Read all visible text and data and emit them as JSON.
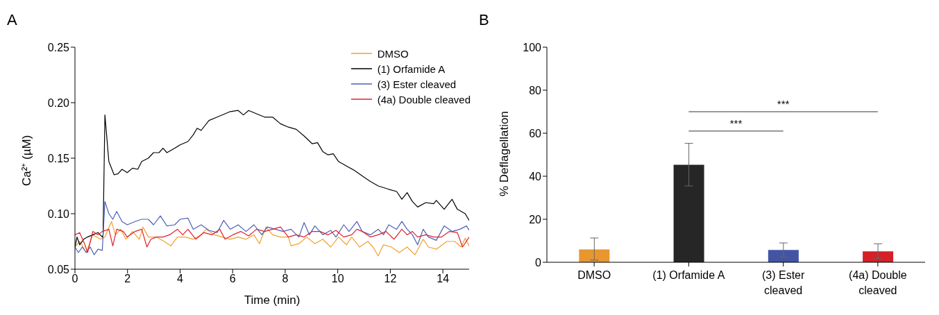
{
  "chart_data": [
    {
      "type": "line",
      "title": "A",
      "xlabel": "Time (min)",
      "ylabel": "Ca²⁺ (µM)",
      "xlim": [
        0,
        15
      ],
      "xticks": [
        0,
        2,
        4,
        6,
        8,
        10,
        12,
        14
      ],
      "ylim": [
        0.05,
        0.25
      ],
      "yticks": [
        0.05,
        {
          "value": 0.1,
          "label": "0.10"
        },
        0.15,
        {
          "value": 0.2,
          "label": "0.20"
        },
        0.25
      ],
      "legend": "top right",
      "series": [
        {
          "name": "DMSO",
          "color": "#f0a030",
          "x": [
            0,
            0.18,
            0.43,
            0.68,
            0.98,
            1.14,
            1.39,
            1.54,
            1.74,
            1.94,
            2.19,
            2.45,
            2.59,
            2.79,
            3.1,
            3.4,
            3.65,
            3.9,
            4.2,
            4.5,
            4.8,
            5.0,
            5.31,
            5.61,
            5.91,
            6.21,
            6.51,
            6.81,
            7.02,
            7.27,
            7.52,
            7.82,
            8.12,
            8.22,
            8.52,
            8.82,
            9.13,
            9.43,
            9.73,
            10.03,
            10.33,
            10.53,
            10.83,
            11.14,
            11.34,
            11.54,
            11.74,
            12.04,
            12.34,
            12.64,
            12.94,
            13.25,
            13.45,
            13.75,
            14.15,
            14.45,
            14.7,
            14.85,
            15
          ],
          "values": [
            0.07,
            0.075,
            0.065,
            0.081,
            0.077,
            0.079,
            0.093,
            0.081,
            0.086,
            0.077,
            0.084,
            0.077,
            0.088,
            0.079,
            0.079,
            0.075,
            0.071,
            0.079,
            0.079,
            0.077,
            0.081,
            0.086,
            0.081,
            0.079,
            0.077,
            0.079,
            0.077,
            0.081,
            0.073,
            0.088,
            0.081,
            0.079,
            0.079,
            0.071,
            0.073,
            0.079,
            0.073,
            0.077,
            0.07,
            0.079,
            0.072,
            0.079,
            0.07,
            0.075,
            0.07,
            0.062,
            0.072,
            0.07,
            0.065,
            0.07,
            0.063,
            0.077,
            0.07,
            0.068,
            0.075,
            0.075,
            0.07,
            0.078,
            0.071
          ]
        },
        {
          "name": "(1) Orfamide A",
          "color": "#000000",
          "x": [
            0,
            0.08,
            0.18,
            0.33,
            0.48,
            0.68,
            0.88,
            1.04,
            1.07,
            1.14,
            1.29,
            1.49,
            1.64,
            1.79,
            1.99,
            2.19,
            2.39,
            2.54,
            2.79,
            2.99,
            3.2,
            3.35,
            3.5,
            3.8,
            4.0,
            4.3,
            4.5,
            4.65,
            4.8,
            5.1,
            5.41,
            5.71,
            5.91,
            6.21,
            6.41,
            6.61,
            6.91,
            7.22,
            7.52,
            7.82,
            8.12,
            8.42,
            8.72,
            9.03,
            9.23,
            9.43,
            9.63,
            9.83,
            10.03,
            10.33,
            10.63,
            10.93,
            11.24,
            11.54,
            11.94,
            12.24,
            12.44,
            12.64,
            12.84,
            13.04,
            13.35,
            13.65,
            13.75,
            14.05,
            14.35,
            14.55,
            14.85,
            15
          ],
          "values": [
            0.07,
            0.079,
            0.072,
            0.077,
            0.079,
            0.081,
            0.083,
            0.079,
            0.081,
            0.189,
            0.147,
            0.135,
            0.136,
            0.14,
            0.137,
            0.141,
            0.14,
            0.147,
            0.15,
            0.155,
            0.155,
            0.159,
            0.155,
            0.159,
            0.162,
            0.165,
            0.171,
            0.177,
            0.175,
            0.184,
            0.187,
            0.19,
            0.192,
            0.193,
            0.189,
            0.193,
            0.19,
            0.187,
            0.187,
            0.181,
            0.178,
            0.176,
            0.17,
            0.163,
            0.164,
            0.156,
            0.153,
            0.154,
            0.147,
            0.143,
            0.139,
            0.134,
            0.129,
            0.125,
            0.122,
            0.12,
            0.113,
            0.119,
            0.111,
            0.106,
            0.11,
            0.109,
            0.112,
            0.104,
            0.113,
            0.104,
            0.1,
            0.094
          ]
        },
        {
          "name": "(3) Ester cleaved",
          "color": "#4b5fb5",
          "x": [
            0,
            0.13,
            0.28,
            0.43,
            0.58,
            0.73,
            0.88,
            1.04,
            1.14,
            1.29,
            1.44,
            1.59,
            1.79,
            1.99,
            2.29,
            2.54,
            2.79,
            2.99,
            3.25,
            3.5,
            3.8,
            4.0,
            4.3,
            4.5,
            4.8,
            5.1,
            5.41,
            5.66,
            5.91,
            6.21,
            6.51,
            6.81,
            7.11,
            7.32,
            7.62,
            7.92,
            8.22,
            8.52,
            8.72,
            8.92,
            9.13,
            9.43,
            9.73,
            9.93,
            10.23,
            10.43,
            10.73,
            10.93,
            11.24,
            11.54,
            11.74,
            11.94,
            12.24,
            12.44,
            12.64,
            12.84,
            13.04,
            13.25,
            13.45,
            13.75,
            14.05,
            14.35,
            14.65,
            14.9,
            15
          ],
          "values": [
            0.07,
            0.065,
            0.07,
            0.065,
            0.07,
            0.063,
            0.068,
            0.067,
            0.111,
            0.1,
            0.095,
            0.102,
            0.093,
            0.09,
            0.093,
            0.095,
            0.095,
            0.09,
            0.098,
            0.089,
            0.09,
            0.095,
            0.096,
            0.086,
            0.09,
            0.085,
            0.083,
            0.094,
            0.086,
            0.09,
            0.084,
            0.09,
            0.081,
            0.088,
            0.086,
            0.084,
            0.086,
            0.079,
            0.092,
            0.081,
            0.089,
            0.081,
            0.085,
            0.079,
            0.09,
            0.084,
            0.093,
            0.084,
            0.081,
            0.086,
            0.081,
            0.09,
            0.086,
            0.093,
            0.086,
            0.081,
            0.072,
            0.086,
            0.079,
            0.076,
            0.089,
            0.084,
            0.086,
            0.089,
            0.085
          ]
        },
        {
          "name": "(4a) Double cleaved",
          "color": "#e0202a",
          "x": [
            0,
            0.18,
            0.38,
            0.48,
            0.68,
            0.88,
            1.04,
            1.29,
            1.44,
            1.59,
            1.84,
            1.99,
            2.29,
            2.54,
            2.74,
            2.89,
            3.1,
            3.35,
            3.6,
            3.9,
            4.1,
            4.3,
            4.6,
            4.9,
            5.21,
            5.51,
            5.71,
            6.01,
            6.31,
            6.61,
            6.91,
            7.22,
            7.52,
            7.82,
            8.12,
            8.42,
            8.72,
            9.03,
            9.33,
            9.63,
            9.93,
            10.23,
            10.53,
            10.73,
            10.93,
            11.24,
            11.54,
            11.84,
            12.14,
            12.44,
            12.64,
            12.84,
            13.04,
            13.35,
            13.65,
            13.95,
            14.25,
            14.55,
            14.75,
            15
          ],
          "values": [
            0.081,
            0.083,
            0.072,
            0.065,
            0.084,
            0.081,
            0.084,
            0.086,
            0.071,
            0.086,
            0.084,
            0.079,
            0.084,
            0.086,
            0.07,
            0.077,
            0.079,
            0.079,
            0.081,
            0.086,
            0.081,
            0.086,
            0.077,
            0.083,
            0.081,
            0.086,
            0.077,
            0.081,
            0.084,
            0.08,
            0.086,
            0.084,
            0.086,
            0.088,
            0.079,
            0.081,
            0.079,
            0.084,
            0.084,
            0.081,
            0.085,
            0.079,
            0.081,
            0.086,
            0.084,
            0.079,
            0.081,
            0.084,
            0.077,
            0.086,
            0.081,
            0.084,
            0.079,
            0.081,
            0.079,
            0.079,
            0.084,
            0.083,
            0.07,
            0.079
          ]
        }
      ]
    },
    {
      "type": "bar",
      "title": "B",
      "ylabel": "% Deflagellation",
      "categories": [
        "DMSO",
        "(1) Orfamide A",
        "(3) Ester cleaved",
        "(4a) Double cleaved"
      ],
      "values": [
        6.0,
        45.3,
        5.7,
        5.1
      ],
      "colors": [
        "#e8962e",
        "#262626",
        "#4354a5",
        "#d42027"
      ],
      "errors": [
        [
          1.0,
          11.3
        ],
        [
          35.5,
          55.3
        ],
        [
          2.5,
          9.0
        ],
        [
          1.8,
          8.6
        ]
      ],
      "ylim": [
        0,
        100
      ],
      "yticks": [
        0,
        20,
        40,
        60,
        80,
        100
      ],
      "annotations": [
        "***",
        "***"
      ]
    }
  ]
}
